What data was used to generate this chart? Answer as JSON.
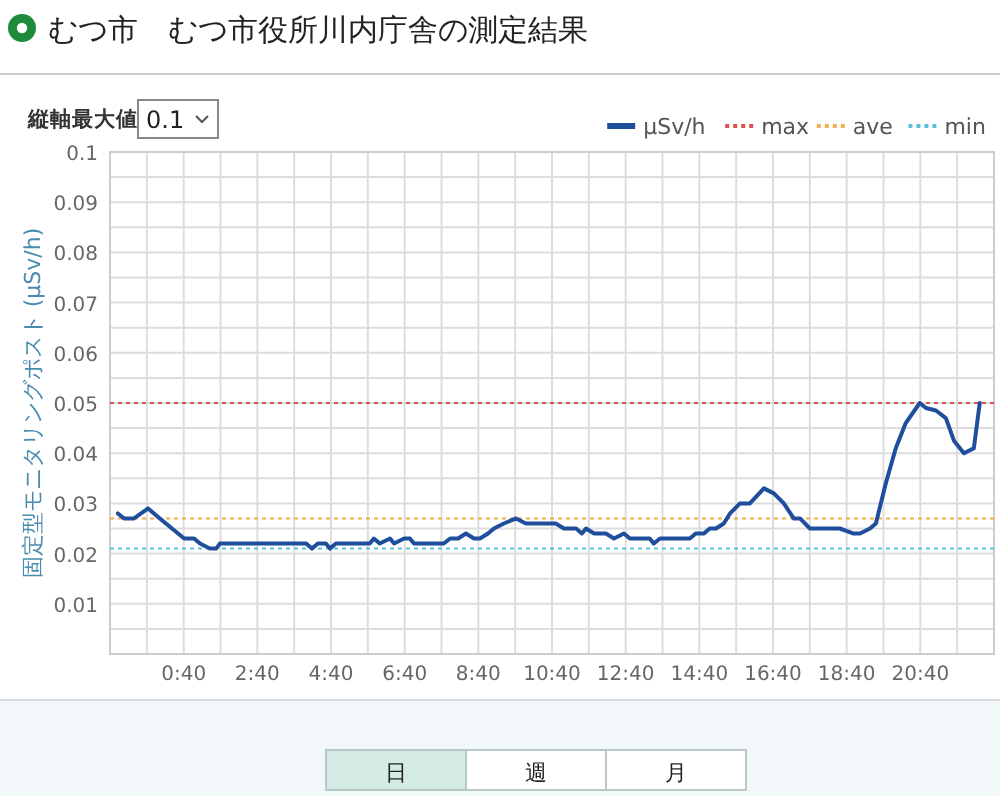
{
  "chart_data": {
    "type": "line",
    "title": "むつ市　むつ市役所川内庁舎の測定結果",
    "ylabel": "固定型モニタリングポスト (μSv/h)",
    "annotations": [
      "縦軸最大値",
      "0.1",
      "日",
      "週",
      "月"
    ],
    "xlim": [
      -1.333,
      22.667
    ],
    "xticks": [
      {
        "value": -0.333,
        "label": null
      },
      {
        "value": 0.667,
        "label": "0:40"
      },
      {
        "value": 1.667,
        "label": null
      },
      {
        "value": 2.667,
        "label": "2:40"
      },
      {
        "value": 3.667,
        "label": null
      },
      {
        "value": 4.667,
        "label": "4:40"
      },
      {
        "value": 5.667,
        "label": null
      },
      {
        "value": 6.667,
        "label": "6:40"
      },
      {
        "value": 7.667,
        "label": null
      },
      {
        "value": 8.667,
        "label": "8:40"
      },
      {
        "value": 9.667,
        "label": null
      },
      {
        "value": 10.667,
        "label": "10:40"
      },
      {
        "value": 11.667,
        "label": null
      },
      {
        "value": 12.667,
        "label": "12:40"
      },
      {
        "value": 13.667,
        "label": null
      },
      {
        "value": 14.667,
        "label": "14:40"
      },
      {
        "value": 15.667,
        "label": null
      },
      {
        "value": 16.667,
        "label": "16:40"
      },
      {
        "value": 17.667,
        "label": null
      },
      {
        "value": 18.667,
        "label": "18:40"
      },
      {
        "value": 19.667,
        "label": null
      },
      {
        "value": 20.667,
        "label": "20:40"
      },
      {
        "value": 21.667,
        "label": null
      }
    ],
    "ylim": [
      0,
      0.1
    ],
    "yticks": [
      {
        "value": 0,
        "label": null
      },
      {
        "value": 0.005,
        "label": null
      },
      0.01,
      {
        "value": 0.015,
        "label": null
      },
      0.02,
      {
        "value": 0.025,
        "label": null
      },
      0.03,
      {
        "value": 0.035,
        "label": null
      },
      0.04,
      {
        "value": 0.045,
        "label": null
      },
      0.05,
      {
        "value": 0.055,
        "label": null
      },
      0.06,
      {
        "value": 0.065,
        "label": null
      },
      0.07,
      {
        "value": 0.075,
        "label": null
      },
      0.08,
      {
        "value": 0.085,
        "label": null
      },
      0.09,
      {
        "value": 0.095,
        "label": null
      },
      0.1
    ],
    "grid": true,
    "legend": "top right",
    "marker": "none",
    "line_style": "solid",
    "series": [
      {
        "name": "μSv/h",
        "color": "#1f4e9c",
        "x": [
          -1.12,
          -0.95,
          -0.68,
          -0.3,
          0.02,
          0.68,
          0.95,
          1.11,
          1.38,
          1.55,
          1.65,
          3.99,
          4.15,
          4.31,
          4.53,
          4.64,
          4.8,
          5.72,
          5.83,
          5.99,
          6.27,
          6.38,
          6.65,
          6.81,
          6.92,
          7.73,
          7.9,
          8.12,
          8.33,
          8.55,
          8.71,
          8.93,
          9.09,
          9.36,
          9.69,
          9.96,
          10.77,
          10.99,
          11.32,
          11.48,
          11.59,
          11.81,
          12.13,
          12.35,
          12.62,
          12.78,
          13.32,
          13.43,
          13.6,
          14.41,
          14.57,
          14.79,
          14.95,
          15.12,
          15.33,
          15.5,
          15.77,
          16.04,
          16.42,
          16.69,
          16.96,
          17.23,
          17.4,
          17.67,
          17.83,
          18.05,
          18.21,
          18.48,
          18.86,
          19.03,
          19.3,
          19.46,
          19.73,
          20.0,
          20.27,
          20.65,
          20.82,
          21.09,
          21.36,
          21.58,
          21.85,
          22.12,
          22.28
        ],
        "values": [
          0.028,
          0.027,
          0.027,
          0.029,
          0.027,
          0.023,
          0.023,
          0.022,
          0.021,
          0.021,
          0.022,
          0.022,
          0.021,
          0.022,
          0.022,
          0.021,
          0.022,
          0.022,
          0.023,
          0.022,
          0.023,
          0.022,
          0.023,
          0.023,
          0.022,
          0.022,
          0.023,
          0.023,
          0.024,
          0.023,
          0.023,
          0.024,
          0.025,
          0.026,
          0.027,
          0.026,
          0.026,
          0.025,
          0.025,
          0.024,
          0.025,
          0.024,
          0.024,
          0.023,
          0.024,
          0.023,
          0.023,
          0.022,
          0.023,
          0.023,
          0.024,
          0.024,
          0.025,
          0.025,
          0.026,
          0.028,
          0.03,
          0.03,
          0.033,
          0.032,
          0.03,
          0.027,
          0.027,
          0.025,
          0.025,
          0.025,
          0.025,
          0.025,
          0.024,
          0.024,
          0.025,
          0.026,
          0.034,
          0.041,
          0.046,
          0.05,
          0.049,
          0.0485,
          0.047,
          0.0425,
          0.04,
          0.041,
          0.05
        ]
      }
    ],
    "ref_lines": [
      {
        "axis": "y",
        "value": 0.05,
        "label": "max",
        "color": "#d9534f",
        "line_style": "dotted"
      },
      {
        "axis": "y",
        "value": 0.027,
        "label": "ave",
        "color": "#f0ad4e",
        "line_style": "dotted"
      },
      {
        "axis": "y",
        "value": 0.021,
        "label": "min",
        "color": "#5bc0de",
        "line_style": "dotted"
      }
    ]
  }
}
